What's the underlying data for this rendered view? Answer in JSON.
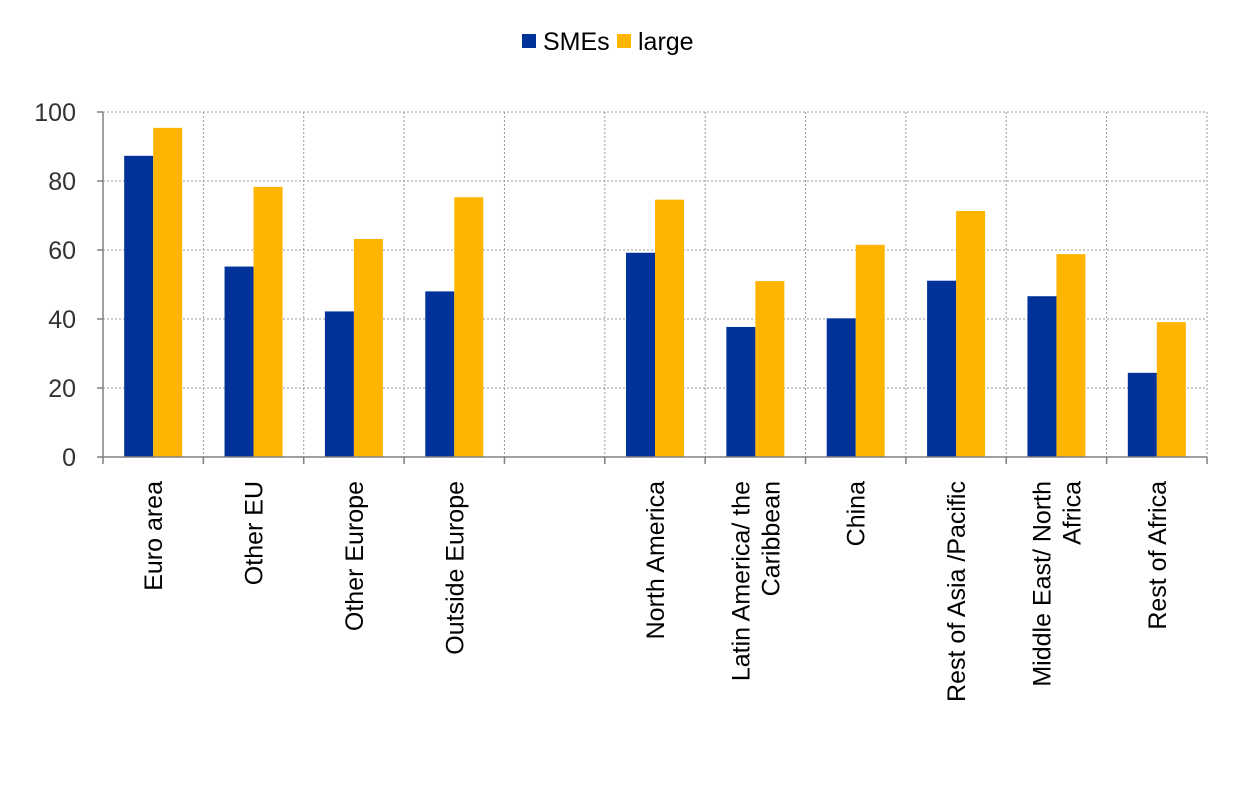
{
  "chart_data": {
    "type": "bar",
    "categories": [
      "Euro area",
      "Other EU",
      "Other Europe",
      "Outside Europe",
      "",
      "North America",
      "Latin America/ the Caribbean",
      "China",
      "Rest of Asia /Pacific",
      "Middle East/ North Africa",
      "Rest of Africa"
    ],
    "series": [
      {
        "name": "SMEs",
        "color": "#003299",
        "values": [
          87.3,
          55.2,
          42.2,
          48.0,
          null,
          59.2,
          37.7,
          40.2,
          51.1,
          46.6,
          24.4
        ]
      },
      {
        "name": "large",
        "color": "#FFB400",
        "values": [
          95.4,
          78.3,
          63.2,
          75.3,
          null,
          74.6,
          51.0,
          61.5,
          71.3,
          58.8,
          39.1
        ]
      }
    ],
    "ylim": [
      0,
      100
    ],
    "yticks": [
      0,
      20,
      40,
      60,
      80,
      100
    ],
    "grid": true,
    "legend": "top-center",
    "title": "",
    "xlabel": "",
    "ylabel": ""
  }
}
